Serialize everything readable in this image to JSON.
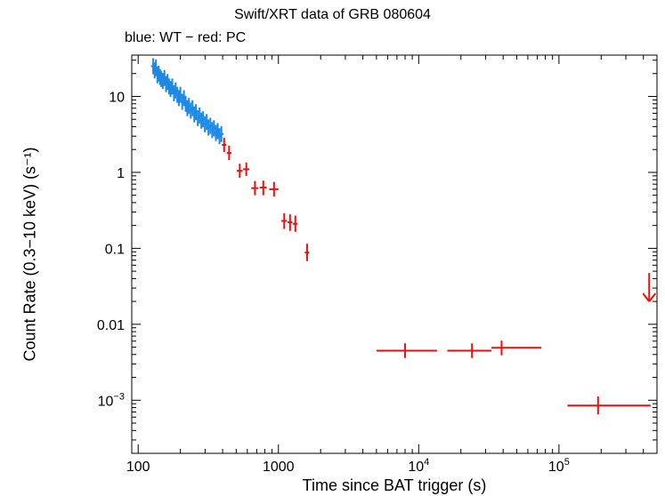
{
  "chart_data": {
    "type": "scatter",
    "title": "Swift/XRT data of GRB 080604",
    "subtitle": "blue: WT − red: PC",
    "xlabel": "Time since BAT trigger (s)",
    "ylabel": "Count Rate (0.3−10 keV) (s⁻¹)",
    "x_scale": "log",
    "y_scale": "log",
    "xlim": [
      90,
      500000
    ],
    "ylim": [
      0.0002,
      35
    ],
    "x_ticks": [
      {
        "value": 100,
        "label": "100"
      },
      {
        "value": 1000,
        "label": "1000"
      },
      {
        "value": 10000,
        "base": "10",
        "exp": "4"
      },
      {
        "value": 100000,
        "base": "10",
        "exp": "5"
      }
    ],
    "y_ticks": [
      {
        "value": 10,
        "label": "10"
      },
      {
        "value": 1,
        "label": "1"
      },
      {
        "value": 0.1,
        "label": "0.1"
      },
      {
        "value": 0.01,
        "label": "0.01"
      },
      {
        "value": 0.001,
        "base": "10",
        "exp": "−3"
      }
    ],
    "series": [
      {
        "name": "WT",
        "color": "#1e88e5",
        "points": [
          [
            128,
            25.0
          ],
          [
            131,
            22.0
          ],
          [
            134,
            24.0
          ],
          [
            137,
            19.0
          ],
          [
            140,
            20.0
          ],
          [
            143,
            18.0
          ],
          [
            146,
            17.0
          ],
          [
            150,
            16.0
          ],
          [
            154,
            17.5
          ],
          [
            158,
            14.5
          ],
          [
            162,
            15.5
          ],
          [
            166,
            13.5
          ],
          [
            170,
            12.5
          ],
          [
            175,
            13.5
          ],
          [
            180,
            11.0
          ],
          [
            185,
            12.0
          ],
          [
            190,
            10.5
          ],
          [
            195,
            9.5
          ],
          [
            200,
            10.5
          ],
          [
            206,
            8.5
          ],
          [
            212,
            9.5
          ],
          [
            218,
            8.0
          ],
          [
            224,
            7.0
          ],
          [
            230,
            7.5
          ],
          [
            237,
            6.5
          ],
          [
            244,
            7.0
          ],
          [
            251,
            5.8
          ],
          [
            258,
            6.2
          ],
          [
            266,
            5.2
          ],
          [
            274,
            5.6
          ],
          [
            282,
            4.8
          ],
          [
            290,
            5.0
          ],
          [
            299,
            4.3
          ],
          [
            308,
            4.6
          ],
          [
            317,
            3.9
          ],
          [
            327,
            4.1
          ],
          [
            337,
            3.6
          ],
          [
            347,
            3.8
          ],
          [
            358,
            3.3
          ],
          [
            369,
            3.5
          ],
          [
            380,
            3.0
          ],
          [
            392,
            3.2
          ]
        ]
      },
      {
        "name": "PC",
        "color": "#e81010",
        "points": [
          {
            "x": 410,
            "y": 2.3,
            "xlo": 395,
            "xhi": 425,
            "ylo": 1.85,
            "yhi": 2.85
          },
          {
            "x": 445,
            "y": 1.8,
            "xlo": 428,
            "xhi": 462,
            "ylo": 1.45,
            "yhi": 2.25
          },
          {
            "x": 530,
            "y": 1.05,
            "xlo": 505,
            "xhi": 555,
            "ylo": 0.85,
            "yhi": 1.3
          },
          {
            "x": 590,
            "y": 1.1,
            "xlo": 560,
            "xhi": 620,
            "ylo": 0.9,
            "yhi": 1.35
          },
          {
            "x": 680,
            "y": 0.62,
            "xlo": 640,
            "xhi": 720,
            "ylo": 0.5,
            "yhi": 0.77
          },
          {
            "x": 780,
            "y": 0.63,
            "xlo": 735,
            "xhi": 825,
            "ylo": 0.5,
            "yhi": 0.78
          },
          {
            "x": 930,
            "y": 0.6,
            "xlo": 860,
            "xhi": 1000,
            "ylo": 0.48,
            "yhi": 0.75
          },
          {
            "x": 1100,
            "y": 0.23,
            "xlo": 1050,
            "xhi": 1150,
            "ylo": 0.18,
            "yhi": 0.29
          },
          {
            "x": 1210,
            "y": 0.22,
            "xlo": 1160,
            "xhi": 1260,
            "ylo": 0.17,
            "yhi": 0.28
          },
          {
            "x": 1320,
            "y": 0.21,
            "xlo": 1270,
            "xhi": 1370,
            "ylo": 0.165,
            "yhi": 0.27
          },
          {
            "x": 1600,
            "y": 0.088,
            "xlo": 1540,
            "xhi": 1660,
            "ylo": 0.068,
            "yhi": 0.115
          },
          {
            "x": 8000,
            "y": 0.0045,
            "xlo": 5000,
            "xhi": 13500,
            "ylo": 0.0036,
            "yhi": 0.0056
          },
          {
            "x": 24000,
            "y": 0.0045,
            "xlo": 16000,
            "xhi": 33000,
            "ylo": 0.0036,
            "yhi": 0.0056
          },
          {
            "x": 39000,
            "y": 0.0049,
            "xlo": 33000,
            "xhi": 75000,
            "ylo": 0.0039,
            "yhi": 0.0061
          },
          {
            "x": 190000,
            "y": 0.00085,
            "xlo": 115000,
            "xhi": 450000,
            "ylo": 0.00065,
            "yhi": 0.00112
          }
        ],
        "upper_limits": [
          {
            "x": 440000,
            "y": 0.02
          }
        ]
      }
    ],
    "grid": false,
    "legend": "none"
  }
}
